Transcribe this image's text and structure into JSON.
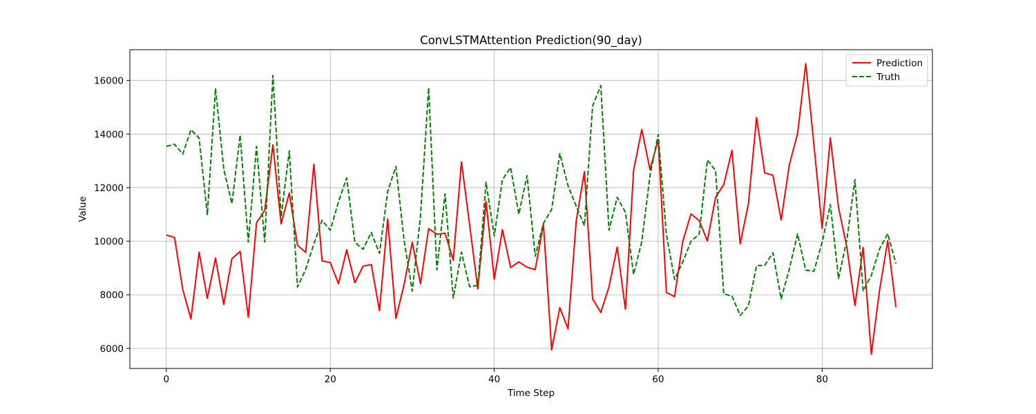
{
  "chart_data": {
    "type": "line",
    "title": "ConvLSTMAttention Prediction(90_day)",
    "xlabel": "Time Step",
    "ylabel": "Value",
    "xlim": [
      -4.45,
      93.45
    ],
    "ylim": [
      5250,
      17150
    ],
    "xticks": [
      0,
      20,
      40,
      60,
      80
    ],
    "yticks": [
      6000,
      8000,
      10000,
      12000,
      14000,
      16000
    ],
    "grid": true,
    "legend_position": "top-right",
    "series": [
      {
        "name": "Prediction",
        "color": "#ff0000",
        "style": "solid",
        "values": [
          10230,
          10140,
          8200,
          7100,
          9590,
          7870,
          9370,
          7640,
          9350,
          9620,
          7160,
          10690,
          11150,
          13600,
          10650,
          11800,
          9850,
          9580,
          12870,
          9270,
          9200,
          8410,
          9680,
          8450,
          9070,
          9130,
          7410,
          10830,
          7120,
          8380,
          9960,
          8410,
          10470,
          10260,
          10300,
          9290,
          12960,
          10600,
          8220,
          11490,
          8580,
          10430,
          9020,
          9230,
          9030,
          8940,
          10640,
          5940,
          7520,
          6730,
          10750,
          12600,
          7850,
          7340,
          8300,
          9780,
          7460,
          12650,
          14170,
          12670,
          13790,
          8090,
          7930,
          10000,
          11020,
          10770,
          10010,
          11640,
          12120,
          13390,
          9900,
          11390,
          14620,
          12550,
          12460,
          10790,
          12860,
          14010,
          16630,
          13590,
          10480,
          13860,
          11250,
          9800,
          7600,
          9770,
          5780,
          8170,
          10020,
          7540
        ]
      },
      {
        "name": "Truth",
        "color": "#008000",
        "style": "dashed",
        "values": [
          13540,
          13620,
          13250,
          14160,
          13850,
          10990,
          15700,
          12700,
          11400,
          13960,
          9970,
          13540,
          9970,
          16190,
          10920,
          13370,
          8290,
          8950,
          9900,
          10780,
          10410,
          11470,
          12360,
          9960,
          9700,
          10330,
          9550,
          11850,
          12790,
          10040,
          8140,
          10920,
          15730,
          8930,
          11770,
          7880,
          9590,
          8300,
          8350,
          12200,
          10200,
          12300,
          12750,
          11010,
          12450,
          9440,
          10670,
          11180,
          13270,
          12070,
          11310,
          10580,
          15050,
          15810,
          10410,
          11640,
          11080,
          8760,
          9990,
          12450,
          13980,
          10260,
          8570,
          9220,
          10000,
          10260,
          13030,
          12640,
          8030,
          7950,
          7230,
          7580,
          9090,
          9100,
          9570,
          7850,
          8970,
          10270,
          8920,
          8880,
          9960,
          11370,
          8610,
          10030,
          12300,
          8150,
          8720,
          9710,
          10280,
          9170
        ]
      }
    ]
  }
}
